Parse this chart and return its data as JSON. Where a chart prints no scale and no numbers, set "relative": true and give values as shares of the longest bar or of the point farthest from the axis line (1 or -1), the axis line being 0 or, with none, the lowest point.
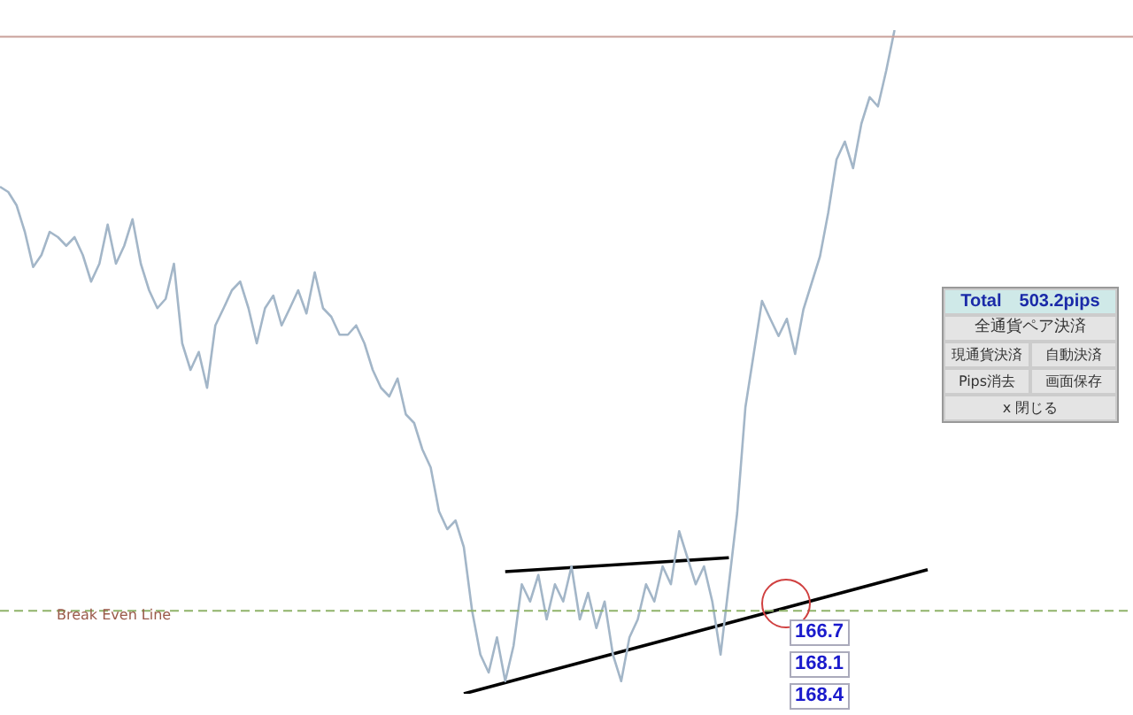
{
  "chart_data": {
    "type": "line",
    "relative": true,
    "legend": false,
    "marker": "none",
    "categories": [
      null,
      null,
      null,
      null,
      null,
      null,
      null,
      null,
      null,
      null,
      null,
      null,
      null,
      null,
      null,
      null,
      null,
      null,
      null,
      null,
      null,
      null,
      null,
      null,
      null,
      null,
      null,
      null,
      null,
      null,
      null,
      null,
      null,
      null,
      null,
      null,
      null,
      null,
      null,
      null,
      null,
      null,
      null,
      null,
      null,
      null,
      null,
      null,
      null,
      null,
      null,
      null,
      null,
      null,
      null,
      null,
      null,
      null,
      null,
      null,
      null,
      null,
      null,
      null,
      null,
      null,
      null,
      null,
      null,
      null,
      null,
      null,
      null,
      null,
      null,
      null,
      null,
      null,
      null,
      null,
      null,
      null,
      null,
      null,
      null,
      null,
      null,
      null,
      null,
      null,
      null,
      null,
      null,
      null,
      null,
      null,
      null,
      null,
      null,
      null,
      null,
      null,
      null,
      null,
      null,
      null,
      null,
      null,
      null,
      null,
      null,
      null,
      null
    ],
    "series": [
      {
        "color": "#a3b6c8",
        "values": [
          0.764,
          0.756,
          0.736,
          0.696,
          0.643,
          0.661,
          0.696,
          0.688,
          0.675,
          0.688,
          0.661,
          0.621,
          0.648,
          0.707,
          0.648,
          0.675,
          0.715,
          0.648,
          0.608,
          0.581,
          0.595,
          0.648,
          0.528,
          0.488,
          0.515,
          0.461,
          0.555,
          0.581,
          0.608,
          0.621,
          0.581,
          0.528,
          0.581,
          0.6,
          0.555,
          0.581,
          0.608,
          0.573,
          0.635,
          0.581,
          0.568,
          0.541,
          0.541,
          0.555,
          0.528,
          0.488,
          0.461,
          0.448,
          0.475,
          0.421,
          0.408,
          0.368,
          0.341,
          0.275,
          0.248,
          0.261,
          0.221,
          0.125,
          0.059,
          0.032,
          0.085,
          0.019,
          0.072,
          0.165,
          0.139,
          0.179,
          0.112,
          0.165,
          0.139,
          0.192,
          0.112,
          0.152,
          0.099,
          0.139,
          0.059,
          0.019,
          0.085,
          0.112,
          0.165,
          0.139,
          0.192,
          0.165,
          0.245,
          0.205,
          0.165,
          0.192,
          0.139,
          0.059,
          0.165,
          0.272,
          0.432,
          0.512,
          0.592,
          0.565,
          0.539,
          0.565,
          0.512,
          0.579,
          0.619,
          0.659,
          0.725,
          0.805,
          0.832,
          0.792,
          0.859,
          0.899,
          0.885,
          0.939,
          1,
          null,
          null,
          null,
          null
        ]
      },
      {
        "color": "#000000",
        "values": [
          null,
          null,
          null,
          null,
          null,
          null,
          null,
          null,
          null,
          null,
          null,
          null,
          null,
          null,
          null,
          null,
          null,
          null,
          null,
          null,
          null,
          null,
          null,
          null,
          null,
          null,
          null,
          null,
          null,
          null,
          null,
          null,
          null,
          null,
          null,
          null,
          null,
          null,
          null,
          null,
          null,
          null,
          null,
          null,
          null,
          null,
          null,
          null,
          null,
          null,
          null,
          null,
          null,
          null,
          null,
          null,
          null,
          null,
          null,
          null,
          null,
          0.184,
          null,
          null,
          null,
          null,
          null,
          null,
          null,
          null,
          null,
          null,
          null,
          null,
          null,
          null,
          null,
          null,
          null,
          null,
          null,
          null,
          null,
          null,
          null,
          null,
          null,
          null,
          0.205,
          null,
          null,
          null,
          null,
          null,
          null,
          null,
          null,
          null,
          null,
          null,
          null,
          null,
          null,
          null,
          null,
          null,
          null,
          null,
          null,
          null,
          null,
          null,
          null
        ]
      },
      {
        "color": "#000000",
        "values": [
          null,
          null,
          null,
          null,
          null,
          null,
          null,
          null,
          null,
          null,
          null,
          null,
          null,
          null,
          null,
          null,
          null,
          null,
          null,
          null,
          null,
          null,
          null,
          null,
          null,
          null,
          null,
          null,
          null,
          null,
          null,
          null,
          null,
          null,
          null,
          null,
          null,
          null,
          null,
          null,
          null,
          null,
          null,
          null,
          null,
          null,
          null,
          null,
          null,
          null,
          null,
          null,
          null,
          null,
          null,
          null,
          0,
          null,
          null,
          null,
          null,
          null,
          null,
          null,
          null,
          null,
          null,
          null,
          null,
          null,
          null,
          null,
          null,
          null,
          null,
          null,
          null,
          null,
          null,
          null,
          null,
          null,
          null,
          null,
          null,
          null,
          null,
          null,
          null,
          null,
          null,
          null,
          null,
          null,
          null,
          null,
          null,
          null,
          null,
          null,
          null,
          null,
          null,
          null,
          null,
          null,
          null,
          null,
          null,
          null,
          null,
          null,
          0.187
        ]
      }
    ],
    "ref_lines": [
      {
        "axis": "y",
        "value": 0.125,
        "label": "Break Even Line",
        "color": "#8fb36a",
        "line_style": "dashed"
      },
      {
        "axis": "y",
        "value": 0.99,
        "color": "#c9a09a",
        "line_style": "solid"
      }
    ],
    "annotations": [
      "166.7",
      "168.1",
      "168.4",
      "Total　503.2pips",
      "全通貨ペア決済",
      "現通貨決済",
      "自動決済",
      "Pips消去",
      "画面保存",
      "x 閉じる"
    ]
  }
}
